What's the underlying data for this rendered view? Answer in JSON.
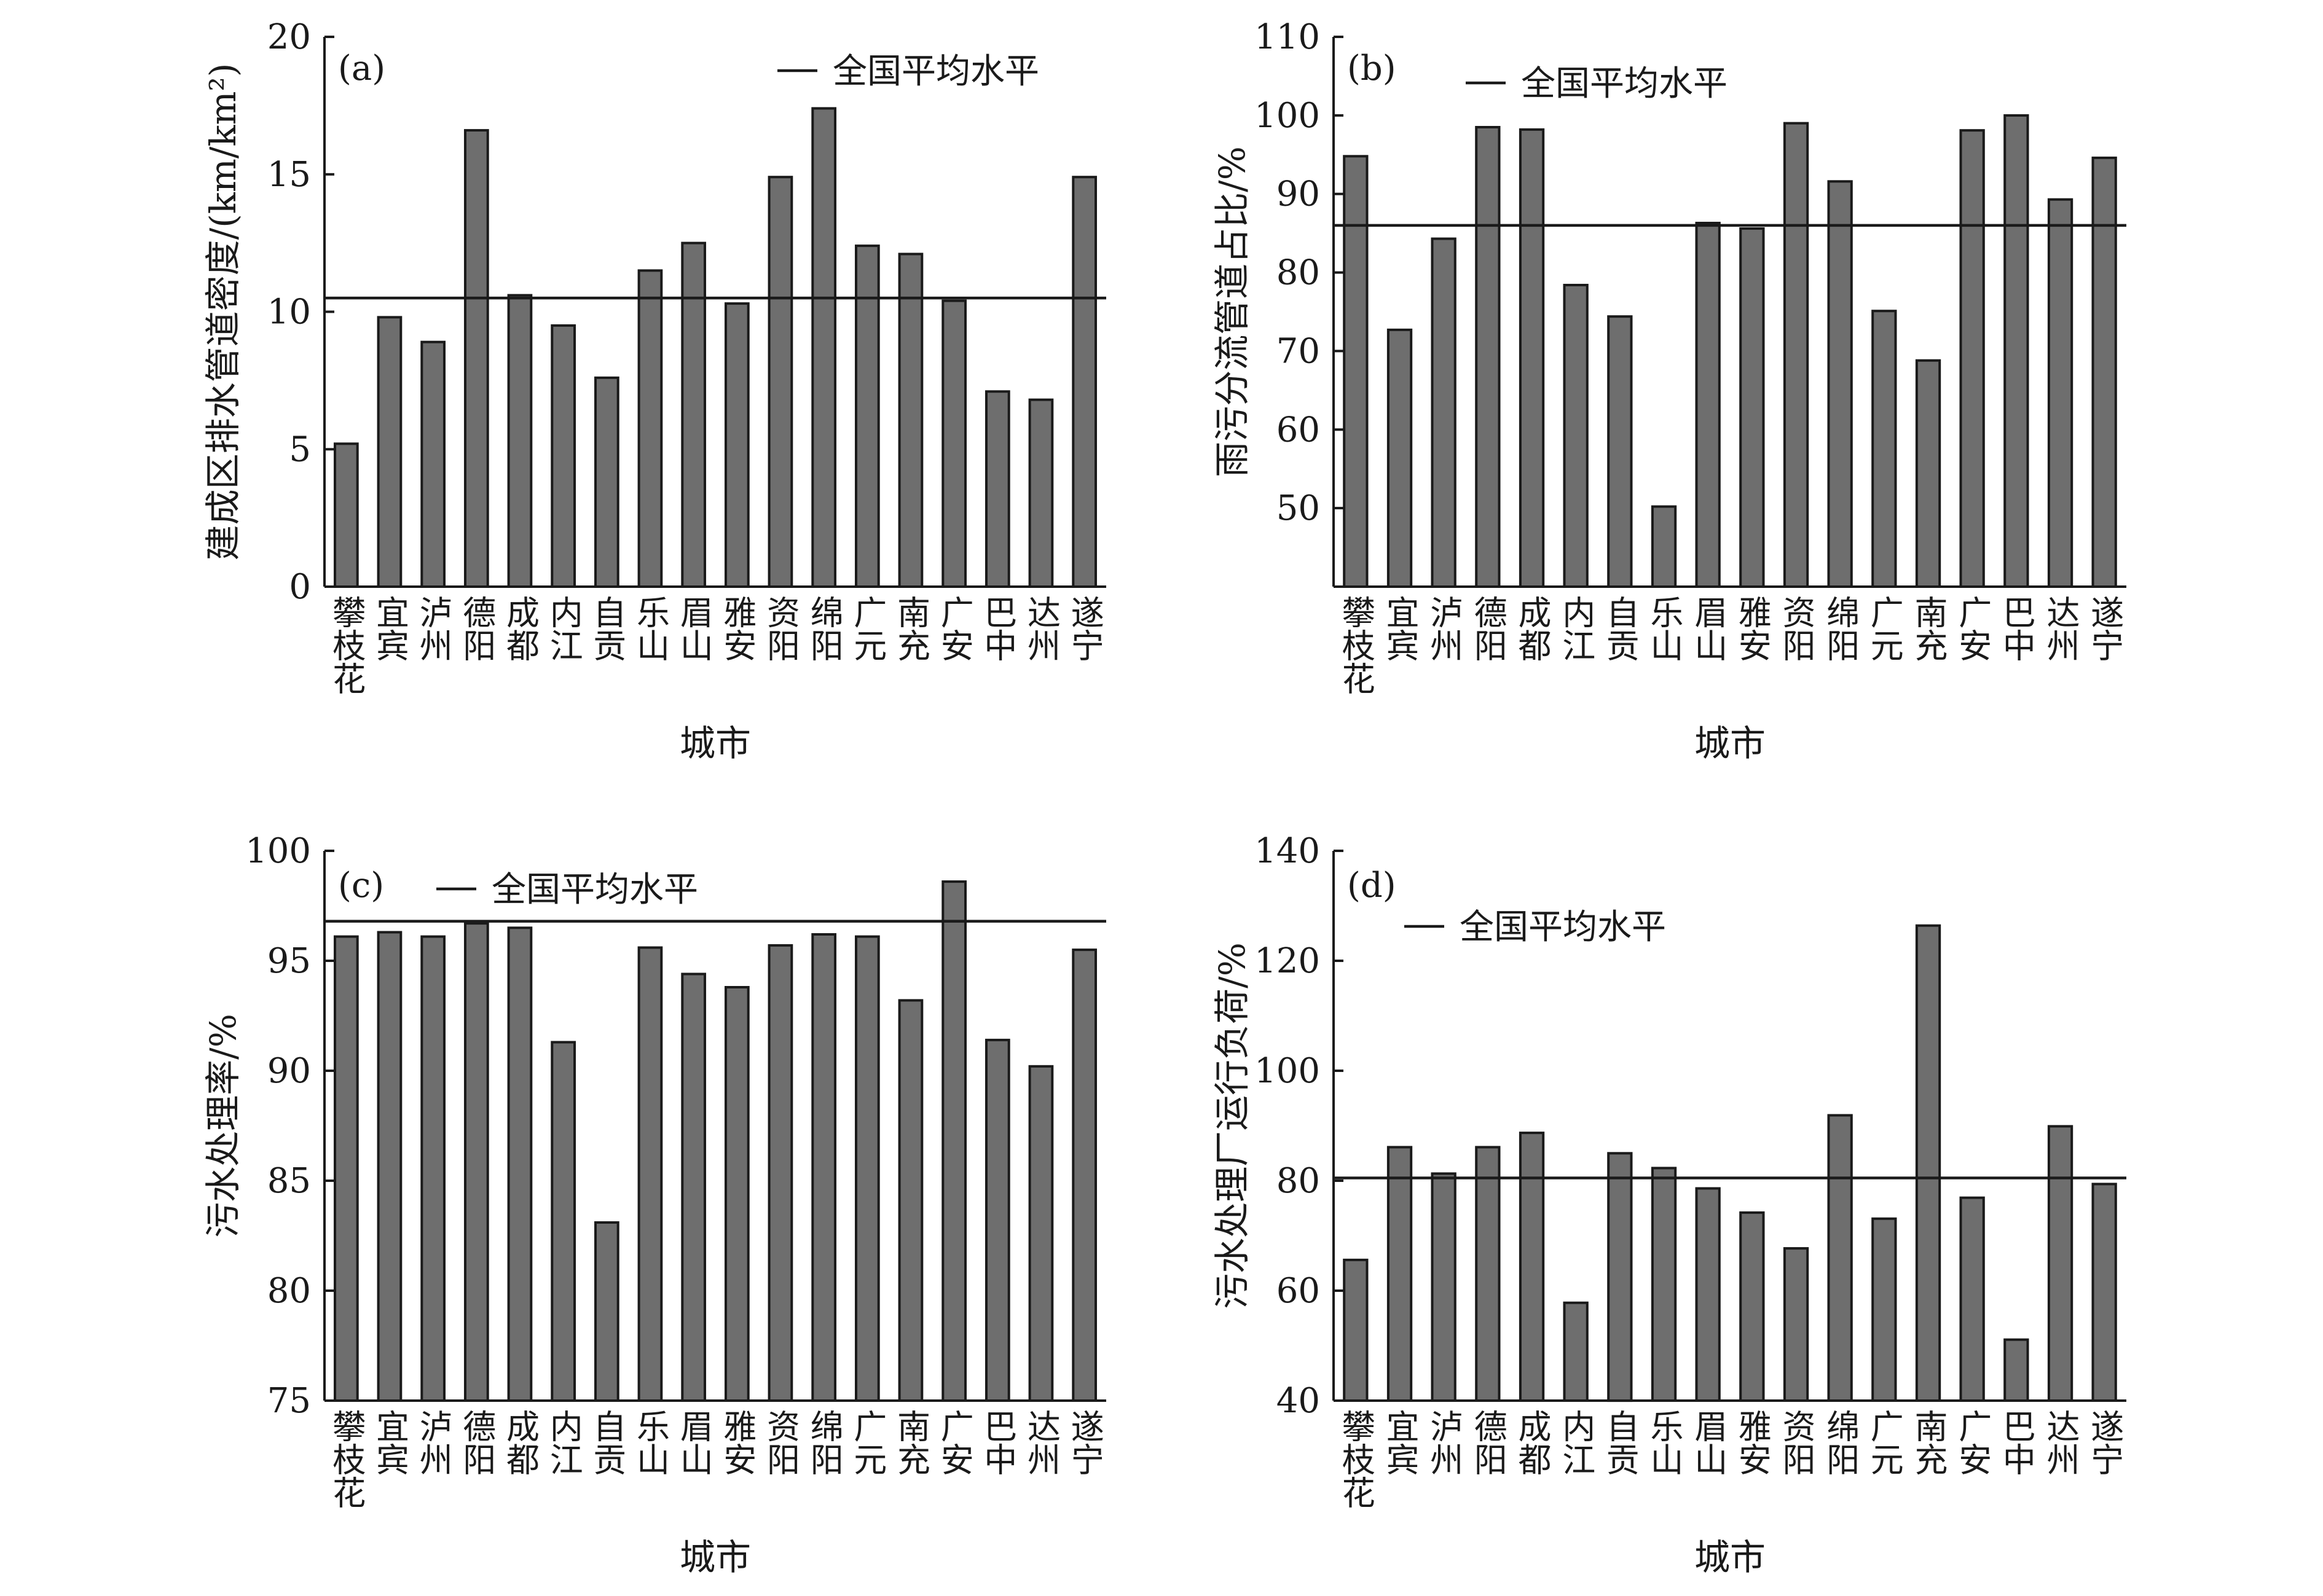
{
  "chart_data": [
    {
      "type": "bar",
      "panel_label": "(a)",
      "categories": [
        "攀枝花",
        "宜宾",
        "泸州",
        "德阳",
        "成都",
        "内江",
        "自贡",
        "乐山",
        "眉山",
        "雅安",
        "资阳",
        "绵阳",
        "广元",
        "南充",
        "广安",
        "巴中",
        "达州",
        "遂宁"
      ],
      "values": [
        5.2,
        9.8,
        8.9,
        16.6,
        10.6,
        9.5,
        7.6,
        11.5,
        12.5,
        10.3,
        14.9,
        17.4,
        12.4,
        12.1,
        10.4,
        7.1,
        6.8,
        14.9
      ],
      "reference_line": {
        "label": "全国平均水平",
        "value": 10.5
      },
      "xlabel": "城市",
      "ylabel": "建成区排水管道密度/(km/km²)",
      "ylim": [
        0,
        20
      ],
      "yticks": [
        0,
        5,
        10,
        15,
        20
      ],
      "legend_position": "top-right",
      "grid": false
    },
    {
      "type": "bar",
      "panel_label": "(b)",
      "categories": [
        "攀枝花",
        "宜宾",
        "泸州",
        "德阳",
        "成都",
        "内江",
        "自贡",
        "乐山",
        "眉山",
        "雅安",
        "资阳",
        "绵阳",
        "广元",
        "南充",
        "广安",
        "巴中",
        "达州",
        "遂宁"
      ],
      "values": [
        94.8,
        72.7,
        84.3,
        98.5,
        98.2,
        78.4,
        74.4,
        50.2,
        86.3,
        85.6,
        99.0,
        91.6,
        75.1,
        68.8,
        98.1,
        100.0,
        89.3,
        94.6
      ],
      "reference_line": {
        "label": "全国平均水平",
        "value": 86.0
      },
      "xlabel": "城市",
      "ylabel": "雨污分流管道占比/%",
      "ylim": [
        40,
        110
      ],
      "yticks": [
        50,
        60,
        70,
        80,
        90,
        100,
        110
      ],
      "legend_position": "top-left",
      "grid": false
    },
    {
      "type": "bar",
      "panel_label": "(c)",
      "categories": [
        "攀枝花",
        "宜宾",
        "泸州",
        "德阳",
        "成都",
        "内江",
        "自贡",
        "乐山",
        "眉山",
        "雅安",
        "资阳",
        "绵阳",
        "广元",
        "南充",
        "广安",
        "巴中",
        "达州",
        "遂宁"
      ],
      "values": [
        96.1,
        96.3,
        96.1,
        96.7,
        96.5,
        91.3,
        83.1,
        95.6,
        94.4,
        93.8,
        95.7,
        96.2,
        96.1,
        93.2,
        98.6,
        91.4,
        90.2,
        95.5
      ],
      "reference_line": {
        "label": "全国平均水平",
        "value": 96.8
      },
      "xlabel": "城市",
      "ylabel": "污水处理率/%",
      "ylim": [
        75,
        100
      ],
      "yticks": [
        75,
        80,
        85,
        90,
        95,
        100
      ],
      "legend_position": "top-left",
      "grid": false
    },
    {
      "type": "bar",
      "panel_label": "(d)",
      "categories": [
        "攀枝花",
        "宜宾",
        "泸州",
        "德阳",
        "成都",
        "内江",
        "自贡",
        "乐山",
        "眉山",
        "雅安",
        "资阳",
        "绵阳",
        "广元",
        "南充",
        "广安",
        "巴中",
        "达州",
        "遂宁"
      ],
      "values": [
        65.6,
        86.1,
        81.3,
        86.1,
        88.7,
        57.8,
        85.0,
        82.3,
        78.6,
        74.2,
        67.7,
        91.9,
        73.1,
        126.4,
        76.9,
        51.1,
        89.9,
        79.4
      ],
      "reference_line": {
        "label": "全国平均水平",
        "value": 80.5
      },
      "xlabel": "城市",
      "ylabel": "污水处理厂运行负荷/%",
      "ylim": [
        40,
        140
      ],
      "yticks": [
        40,
        60,
        80,
        100,
        120,
        140
      ],
      "legend_position": "top-left",
      "grid": false
    }
  ]
}
